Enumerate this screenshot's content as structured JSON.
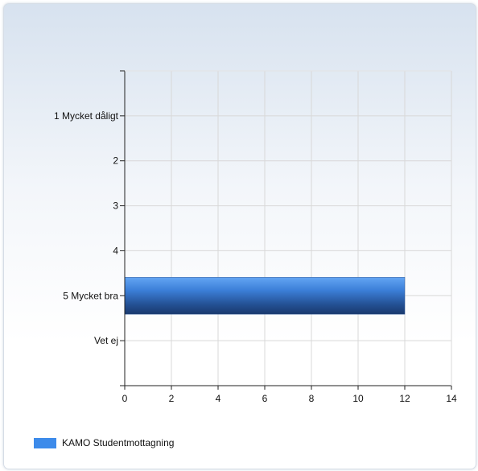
{
  "chart_data": {
    "type": "bar",
    "orientation": "horizontal",
    "categories": [
      "1 Mycket dåligt",
      "2",
      "3",
      "4",
      "5 Mycket bra",
      "Vet ej"
    ],
    "series": [
      {
        "name": "KAMO Studentmottagning",
        "values": [
          0,
          0,
          0,
          0,
          12,
          0
        ],
        "color": "#3d8bea"
      }
    ],
    "xlim": [
      0,
      14
    ],
    "xticks": [
      "0",
      "2",
      "4",
      "6",
      "8",
      "10",
      "12",
      "14"
    ],
    "grid": true,
    "legend_position": "bottom-left"
  }
}
